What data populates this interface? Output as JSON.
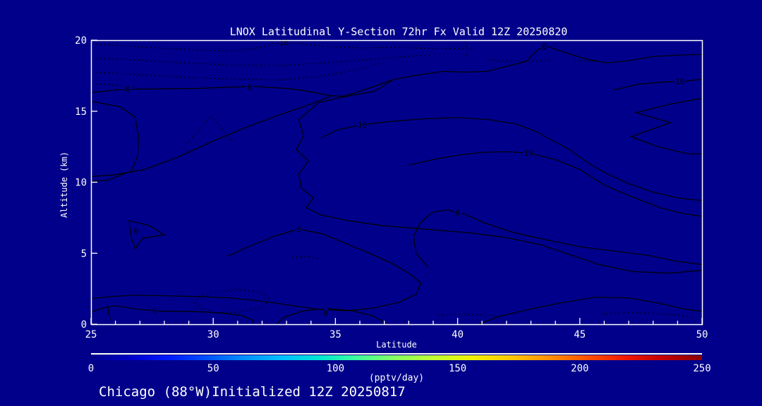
{
  "title": "LNOX Latitudinal Y-Section 72hr  Fx Valid 12Z 20250820",
  "caption": "Chicago (88°W)Initialized 12Z 20250817",
  "colors": {
    "background": "#00008B",
    "contour": "#000000",
    "axis": "#FFFFFF",
    "text": "#FFFFFF"
  },
  "chart_data": {
    "type": "contour",
    "title": "LNOX Latitudinal Y-Section 72hr  Fx Valid 12Z 20250820",
    "xlabel": "Latitude",
    "ylabel": "Altitude (km)",
    "xlim": [
      25,
      50
    ],
    "ylim": [
      0,
      20
    ],
    "xticks": [
      25,
      30,
      35,
      40,
      45,
      50
    ],
    "yticks": [
      0,
      5,
      10,
      15,
      20
    ],
    "grid": false,
    "contour_levels_solid": [
      0,
      10
    ],
    "contour_levels_dashed": [
      -10
    ],
    "colorbar": {
      "min": 0,
      "max": 250,
      "ticks": [
        0,
        50,
        100,
        150,
        200,
        250
      ],
      "units": "(pptv/day)",
      "colors": [
        "#00008B",
        "#0000C8",
        "#0018FF",
        "#0050FF",
        "#0090FF",
        "#00C0FF",
        "#00E8D0",
        "#40FF98",
        "#88FF60",
        "#C0FF30",
        "#F0F000",
        "#FFC800",
        "#FF9000",
        "#FF5000",
        "#F01800",
        "#C00000",
        "#8B0000"
      ]
    },
    "labels": [
      {
        "text": "-10",
        "lat": 32.8,
        "alt": 19.85
      },
      {
        "text": "0",
        "lat": 26.5,
        "alt": 16.55
      },
      {
        "text": "0",
        "lat": 31.5,
        "alt": 16.7
      },
      {
        "text": "0",
        "lat": 43.55,
        "alt": 19.55
      },
      {
        "text": "10",
        "lat": 49.1,
        "alt": 17.1
      },
      {
        "text": "10",
        "lat": 36.1,
        "alt": 14.05
      },
      {
        "text": "10",
        "lat": 42.9,
        "alt": 12.05
      },
      {
        "text": "0",
        "lat": 40.0,
        "alt": 7.85
      },
      {
        "text": "0",
        "lat": 33.5,
        "alt": 6.7
      },
      {
        "text": "0",
        "lat": 26.85,
        "alt": 6.55
      },
      {
        "text": "0",
        "lat": 27.6,
        "alt": 0.95
      },
      {
        "text": "0",
        "lat": 34.6,
        "alt": 0.8
      }
    ],
    "contours": [
      {
        "level": 0,
        "style": "solid",
        "points": [
          [
            25,
            16.3
          ],
          [
            26,
            16.5
          ],
          [
            26.9,
            16.55
          ],
          [
            29.3,
            16.6
          ],
          [
            31.6,
            16.75
          ],
          [
            33,
            16.6
          ],
          [
            33.7,
            16.45
          ],
          [
            34.8,
            16.1
          ],
          [
            35.3,
            16.05
          ],
          [
            36,
            16.4
          ],
          [
            36.5,
            16.7
          ],
          [
            37.4,
            17.25
          ],
          [
            38.4,
            17.55
          ],
          [
            39.4,
            17.8
          ],
          [
            40.3,
            17.75
          ],
          [
            41.2,
            17.8
          ],
          [
            42.8,
            18.5
          ],
          [
            43.3,
            19.35
          ],
          [
            43.7,
            19.55
          ],
          [
            44.1,
            19.3
          ],
          [
            45.2,
            18.7
          ],
          [
            46.1,
            18.4
          ],
          [
            47,
            18.55
          ],
          [
            48,
            18.85
          ],
          [
            49,
            18.95
          ],
          [
            50,
            19
          ]
        ]
      },
      {
        "level": 0,
        "style": "solid",
        "points": [
          [
            34.8,
            16.05
          ],
          [
            34,
            15.5
          ],
          [
            32.8,
            14.8
          ],
          [
            31.4,
            13.9
          ],
          [
            30,
            12.9
          ],
          [
            28.6,
            11.8
          ],
          [
            27.2,
            10.9
          ],
          [
            25.9,
            10.5
          ],
          [
            25,
            10.4
          ]
        ]
      },
      {
        "level": 0,
        "style": "solid",
        "points": [
          [
            25,
            15.7
          ],
          [
            26.2,
            15.3
          ],
          [
            26.8,
            14.6
          ],
          [
            26.95,
            13.2
          ],
          [
            26.9,
            11.8
          ],
          [
            26.65,
            10.8
          ],
          [
            25.7,
            10.15
          ],
          [
            25,
            10.05
          ]
        ]
      },
      {
        "level": 10,
        "style": "solid",
        "points": [
          [
            37.4,
            17.25
          ],
          [
            36.6,
            16.4
          ],
          [
            35.3,
            16
          ],
          [
            34.3,
            15.6
          ],
          [
            33.5,
            14.4
          ],
          [
            33.7,
            13.3
          ],
          [
            33.4,
            12.3
          ],
          [
            33.9,
            11.5
          ],
          [
            33.5,
            10.6
          ],
          [
            33.6,
            9.6
          ],
          [
            34.1,
            8.9
          ],
          [
            33.8,
            8.2
          ],
          [
            34.4,
            7.7
          ],
          [
            35.5,
            7.3
          ],
          [
            36.9,
            6.95
          ],
          [
            38.6,
            6.7
          ],
          [
            40.4,
            6.45
          ],
          [
            42,
            6.1
          ],
          [
            43.4,
            5.6
          ],
          [
            44.6,
            4.9
          ],
          [
            45.8,
            4.2
          ],
          [
            47.2,
            3.7
          ],
          [
            48.7,
            3.6
          ],
          [
            50,
            3.8
          ]
        ]
      },
      {
        "level": 10,
        "style": "solid",
        "points": [
          [
            34.4,
            13.1
          ],
          [
            35.1,
            13.7
          ],
          [
            36.1,
            14.05
          ],
          [
            37.1,
            14.25
          ],
          [
            38.5,
            14.45
          ],
          [
            40,
            14.55
          ],
          [
            41.3,
            14.4
          ],
          [
            42.4,
            14.1
          ],
          [
            43.3,
            13.5
          ],
          [
            43.8,
            13
          ],
          [
            44.6,
            12.3
          ],
          [
            45.3,
            11.4
          ],
          [
            46.1,
            10.6
          ],
          [
            47,
            9.9
          ],
          [
            48,
            9.3
          ],
          [
            49,
            8.9
          ],
          [
            50,
            8.7
          ]
        ]
      },
      {
        "level": 10,
        "style": "solid",
        "points": [
          [
            38,
            11.2
          ],
          [
            39,
            11.6
          ],
          [
            40,
            11.9
          ],
          [
            41,
            12.1
          ],
          [
            42,
            12.15
          ],
          [
            42.9,
            12.05
          ],
          [
            44,
            11.6
          ],
          [
            45,
            10.9
          ],
          [
            46,
            9.8
          ],
          [
            47.1,
            9
          ],
          [
            48.3,
            8.2
          ],
          [
            49.2,
            7.8
          ],
          [
            50,
            7.6
          ]
        ]
      },
      {
        "level": 10,
        "style": "solid",
        "points": [
          [
            46.4,
            16.5
          ],
          [
            47.4,
            16.9
          ],
          [
            48.4,
            17.05
          ],
          [
            49.3,
            17.1
          ],
          [
            50,
            17.25
          ]
        ]
      },
      {
        "level": 10,
        "style": "solid",
        "points": [
          [
            50,
            15.9
          ],
          [
            48.7,
            15.5
          ],
          [
            47.3,
            14.9
          ],
          [
            48.7,
            14.2
          ],
          [
            47.1,
            13.2
          ],
          [
            48.2,
            12.5
          ],
          [
            49.4,
            12
          ],
          [
            50,
            12
          ]
        ]
      },
      {
        "level": 0,
        "style": "solid",
        "points": [
          [
            38.8,
            4
          ],
          [
            38.3,
            5
          ],
          [
            38.2,
            6.2
          ],
          [
            38.5,
            7.2
          ],
          [
            39,
            7.9
          ],
          [
            39.6,
            8.05
          ],
          [
            40.3,
            7.75
          ],
          [
            41,
            7.2
          ],
          [
            42.2,
            6.5
          ],
          [
            43.6,
            5.95
          ],
          [
            45,
            5.45
          ],
          [
            46.4,
            5.15
          ],
          [
            47.8,
            4.85
          ],
          [
            48.9,
            4.45
          ],
          [
            50,
            4.2
          ]
        ]
      },
      {
        "level": 0,
        "style": "solid",
        "points": [
          [
            30.6,
            4.8
          ],
          [
            31.5,
            5.5
          ],
          [
            32.5,
            6.2
          ],
          [
            33.5,
            6.7
          ],
          [
            34.5,
            6.35
          ],
          [
            35.4,
            5.7
          ],
          [
            36.4,
            5
          ],
          [
            37.3,
            4.3
          ],
          [
            38,
            3.6
          ],
          [
            38.5,
            2.9
          ],
          [
            38.3,
            2.1
          ],
          [
            37.6,
            1.55
          ],
          [
            36.6,
            1.15
          ],
          [
            35.5,
            0.95
          ],
          [
            34.3,
            1.05
          ],
          [
            33.1,
            1.35
          ],
          [
            31.9,
            1.65
          ],
          [
            30.7,
            1.85
          ],
          [
            29.4,
            1.95
          ],
          [
            28.1,
            2
          ],
          [
            26.9,
            2.05
          ],
          [
            25.8,
            1.95
          ],
          [
            25,
            1.8
          ]
        ]
      },
      {
        "level": 0,
        "style": "solid",
        "points": [
          [
            26.55,
            7.3
          ],
          [
            27.4,
            6.95
          ],
          [
            28,
            6.3
          ],
          [
            27.1,
            6.05
          ],
          [
            26.8,
            5.3
          ],
          [
            26.65,
            6.1
          ],
          [
            26.55,
            7.3
          ]
        ]
      },
      {
        "level": 0,
        "style": "solid",
        "points": [
          [
            25,
            0.85
          ],
          [
            25.5,
            1.15
          ],
          [
            26,
            1.3
          ],
          [
            26.9,
            1.05
          ],
          [
            28,
            0.92
          ],
          [
            29.2,
            0.9
          ],
          [
            30.3,
            0.8
          ],
          [
            31.2,
            0.6
          ],
          [
            31.6,
            0.3
          ],
          [
            31.65,
            0.02
          ]
        ]
      },
      {
        "level": 0,
        "style": "solid",
        "points": [
          [
            25.68,
            1.25
          ],
          [
            25.78,
            0.3
          ]
        ]
      },
      {
        "level": 0,
        "style": "solid",
        "points": [
          [
            32.6,
            0.02
          ],
          [
            32.9,
            0.5
          ],
          [
            33.7,
            0.95
          ],
          [
            34.7,
            1.1
          ],
          [
            35.7,
            0.95
          ],
          [
            36.5,
            0.6
          ],
          [
            36.9,
            0.25
          ],
          [
            37,
            0.02
          ]
        ]
      },
      {
        "level": 0,
        "style": "solid",
        "points": [
          [
            40.9,
            0.02
          ],
          [
            41.6,
            0.5
          ],
          [
            42.8,
            1
          ],
          [
            44.2,
            1.5
          ],
          [
            45.6,
            1.9
          ],
          [
            47,
            1.85
          ],
          [
            48.2,
            1.5
          ],
          [
            49.2,
            1.1
          ],
          [
            50,
            0.9
          ]
        ]
      },
      {
        "level": -10,
        "style": "dashed",
        "points": [
          [
            25,
            19.75
          ],
          [
            26.3,
            19.6
          ],
          [
            27.8,
            19.45
          ],
          [
            29.4,
            19.3
          ],
          [
            30.9,
            19.25
          ],
          [
            32,
            19.5
          ],
          [
            32.5,
            19.8
          ],
          [
            33.4,
            19.8
          ],
          [
            34.6,
            19.55
          ],
          [
            36,
            19.45
          ],
          [
            37.6,
            19.5
          ],
          [
            39.2,
            19.4
          ],
          [
            40.6,
            19.45
          ]
        ]
      },
      {
        "level": -10,
        "style": "dashed",
        "points": [
          [
            25,
            18.75
          ],
          [
            26.8,
            18.6
          ],
          [
            28.8,
            18.4
          ],
          [
            30.8,
            18.25
          ],
          [
            32.8,
            18.2
          ],
          [
            34.5,
            18.4
          ],
          [
            36.2,
            18.6
          ],
          [
            37.9,
            18.85
          ],
          [
            39,
            19
          ]
        ]
      },
      {
        "level": -10,
        "style": "dashed",
        "points": [
          [
            25,
            17.75
          ],
          [
            26.6,
            17.6
          ],
          [
            28.6,
            17.4
          ],
          [
            30.8,
            17.25
          ],
          [
            32.8,
            17.2
          ],
          [
            34.3,
            17.45
          ],
          [
            35.4,
            17.75
          ],
          [
            36.3,
            18.1
          ],
          [
            36.9,
            18.4
          ]
        ]
      },
      {
        "level": -10,
        "style": "dashed",
        "points": [
          [
            25,
            16.95
          ],
          [
            25.9,
            16.85
          ],
          [
            26.8,
            16.7
          ]
        ]
      },
      {
        "level": -10,
        "style": "dashed",
        "points": [
          [
            40.3,
            19.9
          ],
          [
            40.4,
            19.3
          ],
          [
            40.35,
            18.8
          ]
        ]
      },
      {
        "level": -10,
        "style": "dashed",
        "points": [
          [
            41.3,
            18.6
          ],
          [
            42.6,
            18.5
          ],
          [
            43.8,
            18.55
          ]
        ]
      },
      {
        "level": -10,
        "style": "dashed",
        "points": [
          [
            44.8,
            18.55
          ],
          [
            46,
            18.5
          ]
        ]
      },
      {
        "level": -10,
        "style": "dashed",
        "points": [
          [
            28.9,
            12.7
          ],
          [
            29.4,
            13.6
          ],
          [
            29.9,
            14.7
          ],
          [
            30.4,
            13.7
          ],
          [
            30.8,
            12.8
          ]
        ]
      },
      {
        "level": -10,
        "style": "dashed",
        "points": [
          [
            33.2,
            4.7
          ],
          [
            33.8,
            4.78
          ],
          [
            34.3,
            4.65
          ]
        ]
      },
      {
        "level": -10,
        "style": "dashed",
        "points": [
          [
            29.4,
            1.9
          ],
          [
            30.1,
            2.3
          ],
          [
            31,
            2.45
          ],
          [
            31.9,
            2.25
          ],
          [
            32.35,
            1.75
          ],
          [
            32,
            1.2
          ],
          [
            31.1,
            0.85
          ],
          [
            30.1,
            0.8
          ],
          [
            29.5,
            1.1
          ],
          [
            29.25,
            1.5
          ],
          [
            29.4,
            1.9
          ]
        ]
      },
      {
        "level": -10,
        "style": "dashed",
        "points": [
          [
            39.2,
            0.62
          ],
          [
            40.1,
            0.7
          ],
          [
            41,
            0.66
          ],
          [
            41.7,
            0.58
          ]
        ]
      },
      {
        "level": -10,
        "style": "dashed",
        "points": [
          [
            45.9,
            0.72
          ],
          [
            46.9,
            0.82
          ],
          [
            47.9,
            0.78
          ],
          [
            48.9,
            0.66
          ],
          [
            49.6,
            0.5
          ]
        ]
      }
    ]
  }
}
